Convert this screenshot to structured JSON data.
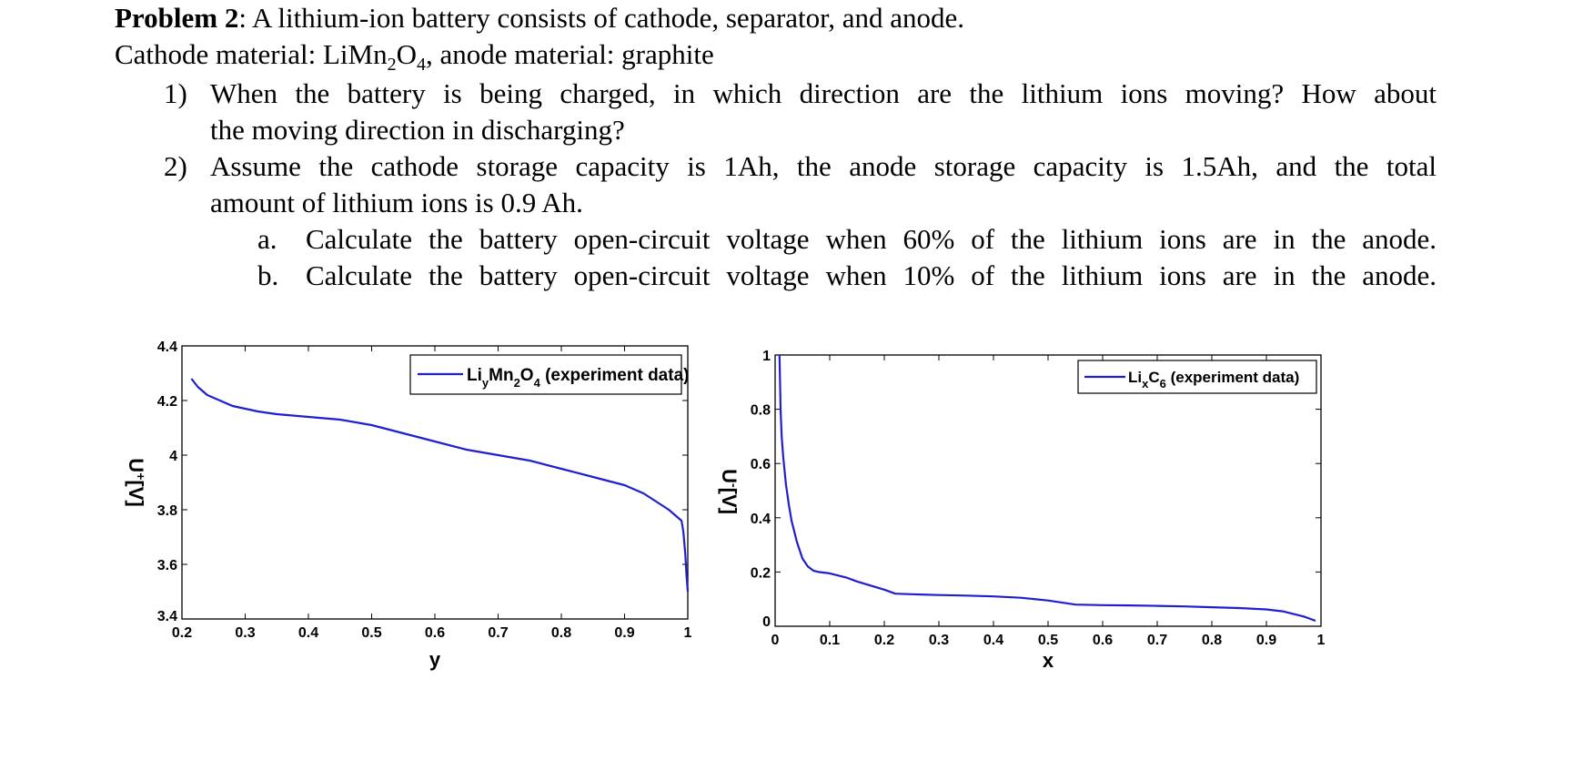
{
  "problem": {
    "heading": "Problem 2",
    "intro": ": A lithium-ion battery consists of cathode, separator, and anode.",
    "materials_pre": "Cathode material: LiMn",
    "materials_sub1": "2",
    "materials_mid": "O",
    "materials_sub2": "4",
    "materials_post": ", anode material: graphite",
    "q1_num": "1)",
    "q1_line1": "When the battery is being charged, in which direction are the lithium ions moving? How about",
    "q1_line2": "the moving direction in discharging?",
    "q2_num": "2)",
    "q2_line1": "Assume the cathode storage capacity is 1Ah, the anode storage capacity is 1.5Ah, and the total",
    "q2_line2": "amount of lithium ions is 0.9 Ah.",
    "qa_num": "a.",
    "qa_text": "Calculate the battery open-circuit voltage when 60% of the lithium ions are in the anode.",
    "qb_num": "b.",
    "qb_text": "Calculate the battery open-circuit voltage when 10% of the lithium ions are in the anode."
  },
  "chart_data": [
    {
      "type": "line",
      "title": "",
      "xlabel": "y",
      "ylabel": "U+[V]",
      "ylabel_main": "U",
      "ylabel_sup": "+",
      "ylabel_unit": "[V]",
      "xlim": [
        0.2,
        1.0
      ],
      "ylim": [
        3.4,
        4.4
      ],
      "xticks": [
        "0.2",
        "0.3",
        "0.4",
        "0.5",
        "0.6",
        "0.7",
        "0.8",
        "0.9",
        "1"
      ],
      "yticks": [
        "3.4",
        "3.6",
        "3.8",
        "4",
        "4.2",
        "4.4"
      ],
      "grid": false,
      "legend_position": "top-right",
      "legend": {
        "p1": "Li",
        "s1": "y",
        "p2": "Mn",
        "s2": "2",
        "p3": "O",
        "s3": "4",
        "p4": " (experiment data)"
      },
      "series_color": "#1f1fcf",
      "series": [
        {
          "name": "LiyMn2O4 (experiment data)",
          "x": [
            0.215,
            0.225,
            0.24,
            0.26,
            0.28,
            0.3,
            0.32,
            0.35,
            0.4,
            0.45,
            0.5,
            0.55,
            0.6,
            0.65,
            0.7,
            0.75,
            0.8,
            0.85,
            0.9,
            0.93,
            0.95,
            0.97,
            0.98,
            0.99,
            0.993,
            0.996,
            0.998,
            1.0
          ],
          "y": [
            4.28,
            4.25,
            4.22,
            4.2,
            4.18,
            4.17,
            4.16,
            4.15,
            4.14,
            4.13,
            4.11,
            4.08,
            4.05,
            4.02,
            4.0,
            3.98,
            3.95,
            3.92,
            3.89,
            3.86,
            3.83,
            3.8,
            3.78,
            3.76,
            3.72,
            3.64,
            3.56,
            3.5
          ]
        }
      ]
    },
    {
      "type": "line",
      "title": "",
      "xlabel": "x",
      "ylabel": "U-[V]",
      "ylabel_main": "U",
      "ylabel_sup": "-",
      "ylabel_unit": "[V]",
      "xlim": [
        0,
        1
      ],
      "ylim": [
        0,
        1
      ],
      "xticks": [
        "0",
        "0.1",
        "0.2",
        "0.3",
        "0.4",
        "0.5",
        "0.6",
        "0.7",
        "0.8",
        "0.9",
        "1"
      ],
      "yticks": [
        "0",
        "0.2",
        "0.4",
        "0.6",
        "0.8",
        "1"
      ],
      "grid": false,
      "legend_position": "top-right",
      "legend": {
        "p1": "Li",
        "s1": "x",
        "p2": "C",
        "s2": "6",
        "p3": " (experiment data)"
      },
      "series_color": "#1f1fcf",
      "series": [
        {
          "name": "LixC6 (experiment data)",
          "x": [
            0.008,
            0.009,
            0.01,
            0.012,
            0.015,
            0.02,
            0.025,
            0.03,
            0.04,
            0.05,
            0.06,
            0.07,
            0.08,
            0.1,
            0.13,
            0.15,
            0.2,
            0.22,
            0.25,
            0.3,
            0.35,
            0.4,
            0.45,
            0.5,
            0.55,
            0.6,
            0.65,
            0.7,
            0.75,
            0.8,
            0.85,
            0.9,
            0.93,
            0.95,
            0.97,
            0.99
          ],
          "y": [
            1.0,
            0.9,
            0.8,
            0.7,
            0.62,
            0.52,
            0.45,
            0.39,
            0.31,
            0.25,
            0.22,
            0.205,
            0.2,
            0.195,
            0.18,
            0.165,
            0.135,
            0.12,
            0.118,
            0.115,
            0.113,
            0.11,
            0.105,
            0.095,
            0.08,
            0.078,
            0.077,
            0.075,
            0.073,
            0.07,
            0.067,
            0.062,
            0.055,
            0.045,
            0.035,
            0.02
          ]
        }
      ]
    }
  ]
}
